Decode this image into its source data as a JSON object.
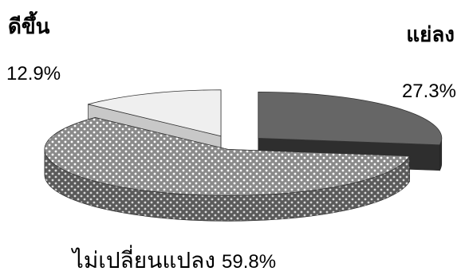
{
  "chart_data": {
    "type": "pie",
    "categories": [
      "ดีขึ้น",
      "แย่ลง",
      "ไม่เปลี่ยนแปลง"
    ],
    "values": [
      12.9,
      27.3,
      59.8
    ],
    "value_labels": [
      "12.9%",
      "27.3%",
      "59.8%"
    ],
    "style": "3d-exploded",
    "colors": [
      "#f0f0f0",
      "#555555",
      "#8a8a8a"
    ]
  }
}
